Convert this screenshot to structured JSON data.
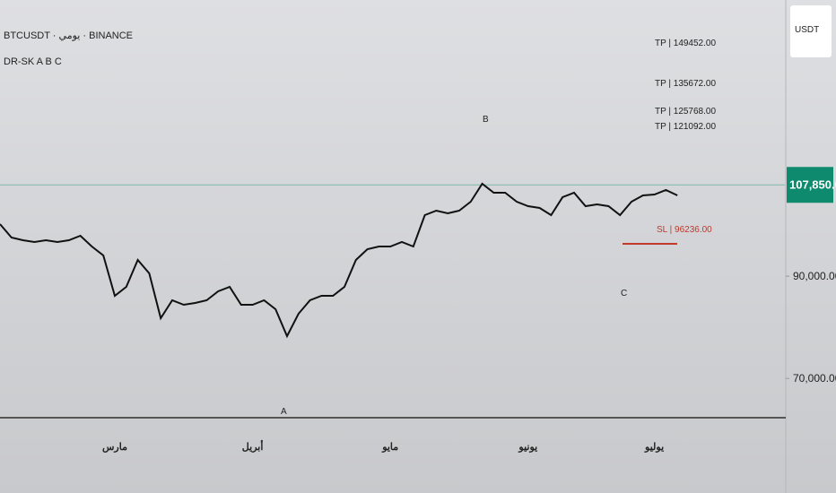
{
  "chart_data": {
    "type": "line",
    "title": "BTCUSDT · يومي · BINANCE",
    "subtitle": "DR-SK A B C",
    "currency": "USDT",
    "categories": [
      null,
      null,
      null,
      null,
      null,
      null,
      null,
      null,
      null,
      null,
      "مارس",
      null,
      null,
      null,
      null,
      null,
      null,
      null,
      null,
      null,
      null,
      null,
      "أبريل",
      null,
      null,
      null,
      null,
      null,
      null,
      null,
      null,
      null,
      null,
      null,
      "مايو",
      null,
      null,
      null,
      null,
      null,
      null,
      null,
      null,
      null,
      null,
      null,
      "يونيو",
      null,
      null,
      null,
      null,
      null,
      null,
      null,
      null,
      null,
      null,
      "يوليو",
      null,
      null
    ],
    "values": [
      100180,
      97550,
      97030,
      96680,
      97030,
      96680,
      97030,
      97900,
      95800,
      94050,
      86160,
      87910,
      93170,
      90540,
      81780,
      85290,
      84410,
      84760,
      85290,
      87040,
      87910,
      84410,
      84410,
      85290,
      83530,
      78270,
      82660,
      85290,
      86160,
      86160,
      87910,
      93170,
      95270,
      95800,
      95800,
      96680,
      95800,
      101940,
      102810,
      102290,
      102810,
      104560,
      108070,
      106310,
      106310,
      104560,
      103680,
      103330,
      101940,
      105440,
      106310,
      103680,
      104030,
      103680,
      101940,
      104560,
      105790,
      105970,
      106840,
      105790
    ],
    "color": "#111111",
    "ylim": [
      62500,
      144000
    ],
    "yticks": [
      {
        "value": 90000,
        "label": "90,000.00"
      },
      {
        "value": 70000,
        "label": "70,000.00"
      }
    ],
    "last_price": {
      "value": 107850.01,
      "label": "107,850.01"
    },
    "targets": [
      "TP | 149452.00",
      "TP | 135672.00",
      "TP | 125768.00",
      "TP | 121092.00"
    ],
    "stop": "SL | 96236.00",
    "points": [
      "A",
      "B",
      "C"
    ]
  }
}
